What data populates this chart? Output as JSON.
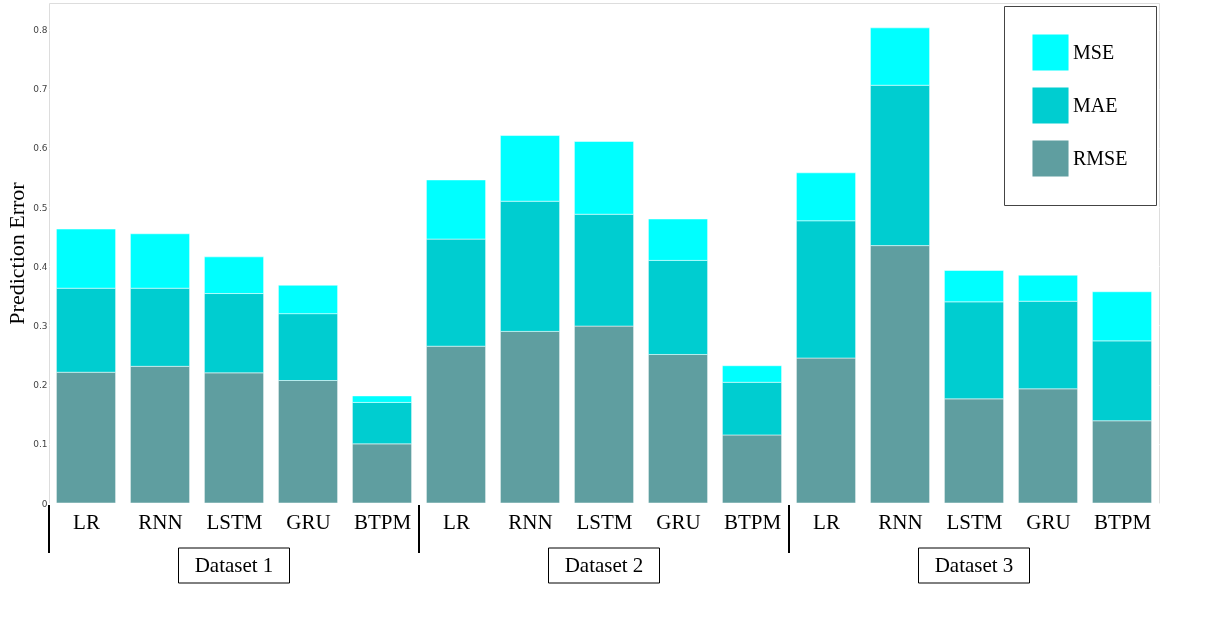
{
  "chart_data": {
    "type": "bar",
    "stacked": true,
    "ylabel": "Prediction Error",
    "categories": [
      "LR",
      "RNN",
      "LSTM",
      "GRU",
      "BTPM",
      "LR",
      "RNN",
      "LSTM",
      "GRU",
      "BTPM",
      "LR",
      "RNN",
      "LSTM",
      "GRU",
      "BTPM"
    ],
    "series": [
      {
        "name": "RMSE",
        "color": "#5f9ea0",
        "values": [
          0.221,
          0.231,
          0.22,
          0.207,
          0.1,
          0.265,
          0.29,
          0.299,
          0.251,
          0.115,
          0.245,
          0.435,
          0.176,
          0.193,
          0.139
        ]
      },
      {
        "name": "MAE",
        "color": "#00cdd0",
        "values": [
          0.142,
          0.132,
          0.134,
          0.113,
          0.07,
          0.181,
          0.22,
          0.189,
          0.159,
          0.089,
          0.232,
          0.271,
          0.164,
          0.148,
          0.135
        ]
      },
      {
        "name": "MSE",
        "color": "#00ffff",
        "values": [
          0.1,
          0.092,
          0.062,
          0.048,
          0.011,
          0.1,
          0.111,
          0.123,
          0.07,
          0.028,
          0.081,
          0.097,
          0.053,
          0.044,
          0.083
        ]
      }
    ],
    "ylim": [
      0,
      0.845
    ],
    "yticks": [
      0,
      0.1,
      0.2,
      0.3,
      0.4,
      0.5,
      0.6,
      0.7,
      0.8
    ],
    "grid": "y",
    "legend": "top right",
    "annotations": [
      "Dataset 1",
      "Dataset 2",
      "Dataset 3"
    ]
  }
}
